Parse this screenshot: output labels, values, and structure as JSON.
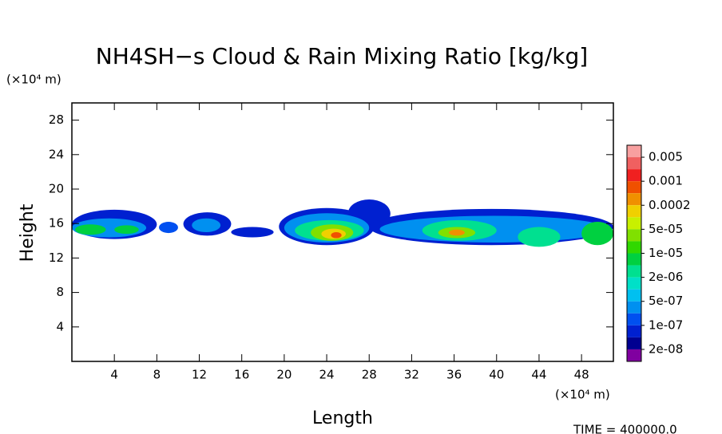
{
  "chart_data": {
    "type": "contour",
    "title": "NH4SH−s Cloud & Rain Mixing Ratio [kg/kg]",
    "x_label": "Length",
    "y_label": "Height",
    "x_unit": "(×10⁴ m)",
    "y_unit": "(×10⁴ m)",
    "footer": "TIME = 400000.0",
    "xlim": [
      0,
      51
    ],
    "ylim": [
      0,
      30
    ],
    "xticks": [
      4,
      8,
      12,
      16,
      20,
      24,
      28,
      32,
      36,
      40,
      44,
      48
    ],
    "yticks": [
      4,
      8,
      12,
      16,
      20,
      24,
      28
    ],
    "colorbar": {
      "colors": [
        "#f8a0a0",
        "#f06060",
        "#f02020",
        "#f05000",
        "#f09000",
        "#f0d000",
        "#c8f000",
        "#80e000",
        "#30d800",
        "#00d040",
        "#00e090",
        "#00e0c8",
        "#00c0f0",
        "#0090f0",
        "#0050f0",
        "#0020d0",
        "#000090",
        "#8000a0"
      ],
      "levels": [
        0.005,
        0.001,
        0.0002,
        {
          "value": 5e-05,
          "label": "5e-05"
        },
        {
          "value": 1e-05,
          "label": "1e-05"
        },
        {
          "value": 2e-06,
          "label": "2e-06"
        },
        {
          "value": 5e-07,
          "label": "5e-07"
        },
        {
          "value": 1e-07,
          "label": "1e-07"
        },
        {
          "value": 2e-08,
          "label": "2e-08"
        }
      ]
    },
    "field": [
      {
        "x": [
          0,
          8
        ],
        "y": [
          14.2,
          17.6
        ],
        "color_index": 15
      },
      {
        "x": [
          0,
          7
        ],
        "y": [
          14.4,
          16.6
        ],
        "color_index": 13
      },
      {
        "x": [
          0.3,
          3.2
        ],
        "y": [
          14.7,
          15.9
        ],
        "color_index": 9
      },
      {
        "x": [
          4,
          6.3
        ],
        "y": [
          14.8,
          15.8
        ],
        "color_index": 9
      },
      {
        "x": [
          8.2,
          10
        ],
        "y": [
          14.9,
          16.2
        ],
        "color_index": 14
      },
      {
        "x": [
          10.5,
          15
        ],
        "y": [
          14.6,
          17.3
        ],
        "color_index": 15
      },
      {
        "x": [
          11.3,
          14
        ],
        "y": [
          15,
          16.6
        ],
        "color_index": 13
      },
      {
        "x": [
          15,
          19
        ],
        "y": [
          14.4,
          15.6
        ],
        "color_index": 15
      },
      {
        "x": [
          19.5,
          28.5
        ],
        "y": [
          13.5,
          17.8
        ],
        "color_index": 15
      },
      {
        "x": [
          26,
          30
        ],
        "y": [
          15.5,
          18.8
        ],
        "color_index": 15
      },
      {
        "x": [
          20,
          28
        ],
        "y": [
          13.8,
          17.2
        ],
        "color_index": 13
      },
      {
        "x": [
          21,
          27.5
        ],
        "y": [
          14,
          16.4
        ],
        "color_index": 10
      },
      {
        "x": [
          22.5,
          26.5
        ],
        "y": [
          14,
          15.9
        ],
        "color_index": 7
      },
      {
        "x": [
          23.5,
          25.8
        ],
        "y": [
          14.2,
          15.4
        ],
        "color_index": 5
      },
      {
        "x": [
          24.4,
          25.4
        ],
        "y": [
          14.3,
          15
        ],
        "color_index": 3
      },
      {
        "x": [
          28,
          51
        ],
        "y": [
          13.5,
          17.7
        ],
        "color_index": 15
      },
      {
        "x": [
          29,
          50.5
        ],
        "y": [
          13.8,
          16.9
        ],
        "color_index": 13
      },
      {
        "x": [
          33,
          40
        ],
        "y": [
          14,
          16.4
        ],
        "color_index": 10
      },
      {
        "x": [
          34.5,
          38
        ],
        "y": [
          14.3,
          15.6
        ],
        "color_index": 7
      },
      {
        "x": [
          35.5,
          37
        ],
        "y": [
          14.6,
          15.3
        ],
        "color_index": 4
      },
      {
        "x": [
          42,
          46
        ],
        "y": [
          13.3,
          15.6
        ],
        "color_index": 10
      },
      {
        "x": [
          48,
          51
        ],
        "y": [
          13.5,
          16.2
        ],
        "color_index": 9
      }
    ]
  }
}
